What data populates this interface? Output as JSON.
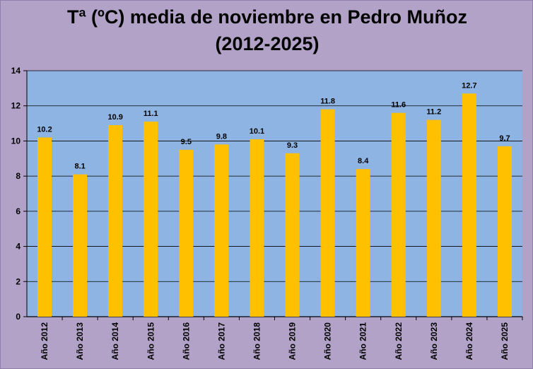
{
  "chart_data": {
    "type": "bar",
    "title": "Tª (ºC) media de noviembre en Pedro Muñoz",
    "subtitle": "(2012-2025)",
    "categories": [
      "Año 2012",
      "Año 2013",
      "Año 2014",
      "Año 2015",
      "Año 2016",
      "Año 2017",
      "Año 2018",
      "Año 2019",
      "Año 2020",
      "Año 2021",
      "Año 2022",
      "Año 2023",
      "Año 2024",
      "Año 2025"
    ],
    "values": [
      10.2,
      8.1,
      10.9,
      11.1,
      9.5,
      9.8,
      10.1,
      9.3,
      11.8,
      8.4,
      11.6,
      11.2,
      12.7,
      9.7
    ],
    "data_labels": [
      "10.2",
      "8.1",
      "10.9",
      "11.1",
      "9.5",
      "9.8",
      "10.1",
      "9.3",
      "11.8",
      "8.4",
      "11.6",
      "11.2",
      "12.7",
      "9.7"
    ],
    "y_ticks": [
      0,
      2,
      4,
      6,
      8,
      10,
      12,
      14
    ],
    "ylim": [
      0,
      14
    ],
    "grid": true,
    "legend": "none",
    "colors": {
      "bar": "#ffc000",
      "plot_background": "#8db4e2",
      "page_background": "#b3a2c7",
      "gridline": "#000000"
    }
  }
}
